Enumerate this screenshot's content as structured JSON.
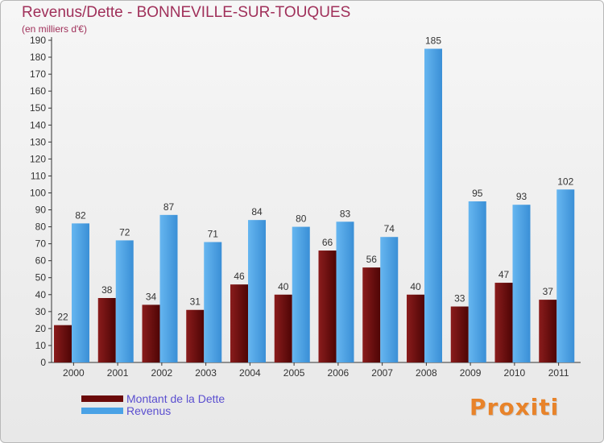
{
  "chart_data": {
    "type": "bar",
    "title": "Revenus/Dette - BONNEVILLE-SUR-TOUQUES",
    "subtitle": "(en milliers d'€)",
    "categories": [
      "2000",
      "2001",
      "2002",
      "2003",
      "2004",
      "2005",
      "2006",
      "2007",
      "2008",
      "2009",
      "2010",
      "2011"
    ],
    "series": [
      {
        "name": "Montant de la Dette",
        "color": "#6b0a0a",
        "values": [
          22,
          38,
          34,
          31,
          46,
          40,
          66,
          56,
          40,
          33,
          47,
          37
        ]
      },
      {
        "name": "Revenus",
        "color": "#4aa2e6",
        "values": [
          82,
          72,
          87,
          71,
          84,
          80,
          83,
          74,
          185,
          95,
          93,
          102
        ]
      }
    ],
    "ylim": [
      0,
      190
    ],
    "ytick_step": 10,
    "grid": false,
    "legend": "bottom-left"
  },
  "logo_text": "Proxiti"
}
